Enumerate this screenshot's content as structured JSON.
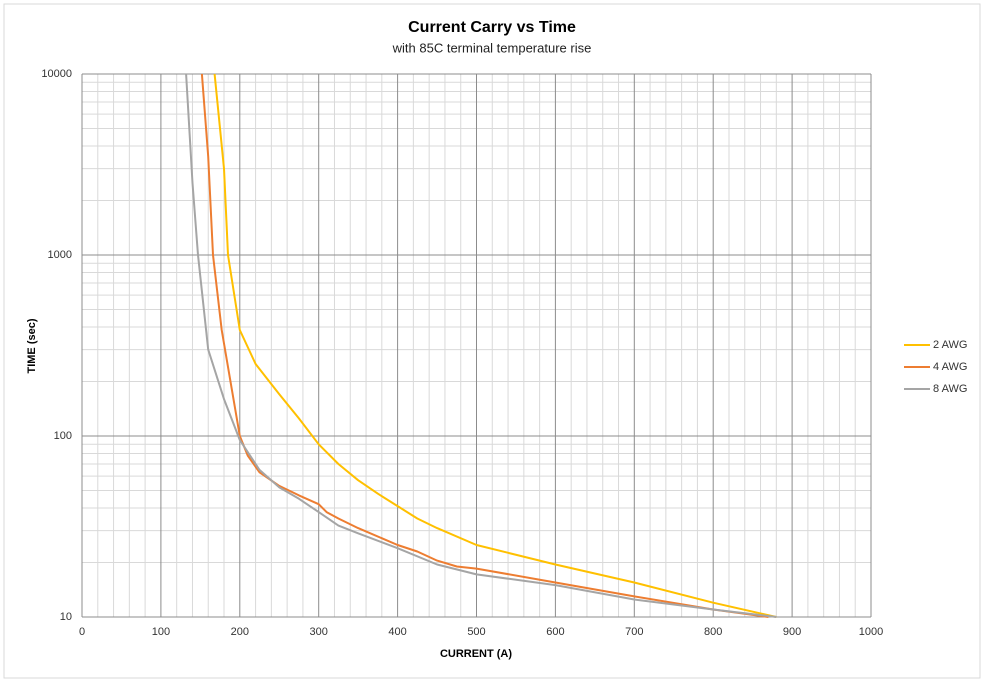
{
  "chart_data": {
    "type": "line",
    "title": "Current Carry vs Time",
    "subtitle": "with 85C terminal temperature rise",
    "x_label": "CURRENT  (A)",
    "y_label": "TIME (sec)",
    "xlim": [
      0,
      1000
    ],
    "xticks": [
      0,
      100,
      200,
      300,
      400,
      500,
      600,
      700,
      800,
      900,
      1000
    ],
    "ylim": [
      10,
      10000
    ],
    "yticks": [
      10,
      100,
      1000,
      10000
    ],
    "y_log": true,
    "grid": true,
    "minor_grid": true,
    "legend": "right",
    "series": [
      {
        "name": "2 AWG",
        "color": "#ffc000",
        "x": [
          168,
          180,
          185,
          200,
          220,
          250,
          275,
          300,
          325,
          350,
          375,
          400,
          425,
          450,
          500,
          600,
          700,
          800,
          880
        ],
        "values": [
          10000,
          3000,
          1000,
          385,
          250,
          170,
          125,
          90,
          70,
          57,
          48,
          41,
          35,
          31,
          25,
          19.5,
          15.5,
          12,
          10
        ]
      },
      {
        "name": "4 AWG",
        "color": "#ed7d31",
        "x": [
          152,
          160,
          166,
          177,
          190,
          200,
          210,
          225,
          250,
          275,
          300,
          310,
          325,
          350,
          400,
          425,
          450,
          475,
          500,
          600,
          700,
          800,
          870
        ],
        "values": [
          10000,
          3500,
          1000,
          385,
          180,
          100,
          78,
          63,
          53,
          47,
          42,
          38,
          35,
          31,
          25,
          23,
          20.5,
          19,
          18.5,
          15.5,
          13,
          11,
          10
        ]
      },
      {
        "name": "8 AWG",
        "color": "#a5a5a5",
        "x": [
          132,
          140,
          147,
          160,
          180,
          200,
          225,
          250,
          275,
          300,
          325,
          350,
          400,
          450,
          500,
          600,
          700,
          800,
          880
        ],
        "values": [
          10000,
          2500,
          1000,
          300,
          160,
          95,
          65,
          52,
          45,
          38,
          32,
          29,
          24,
          19.5,
          17.2,
          15,
          12.5,
          11,
          10
        ]
      }
    ]
  }
}
